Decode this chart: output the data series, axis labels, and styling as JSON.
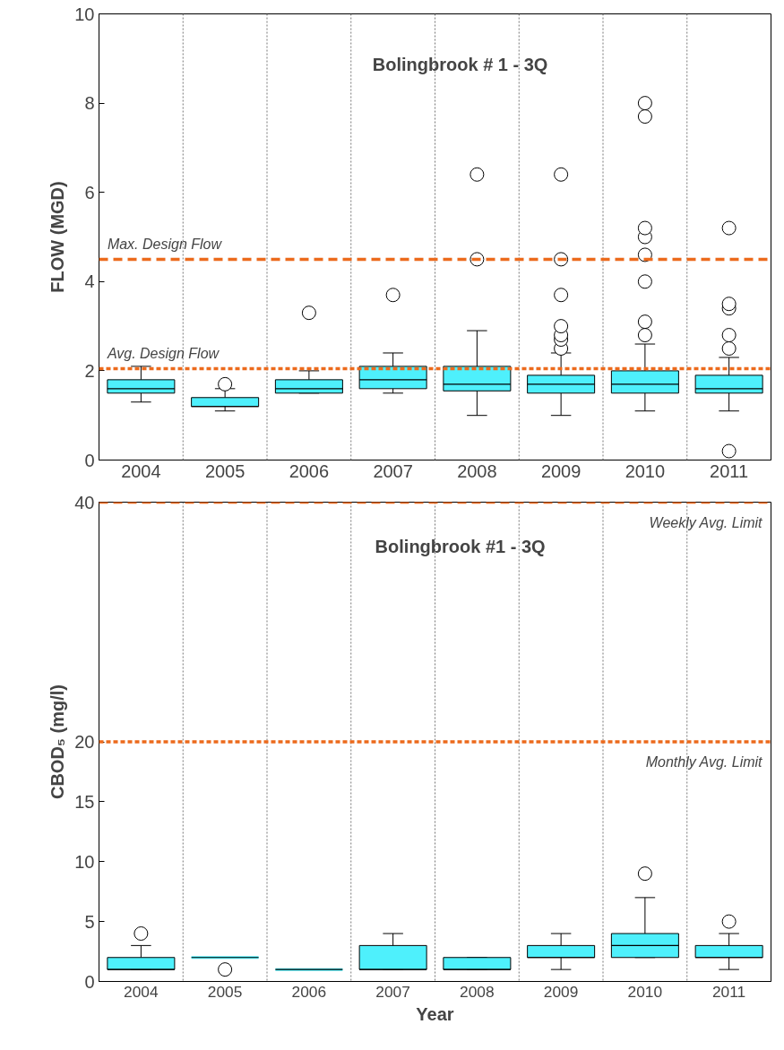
{
  "chart_data": [
    {
      "type": "box",
      "title": "Bolingbrook # 1 - 3Q",
      "ylabel": "FLOW (MGD)",
      "categories": [
        "2004",
        "2005",
        "2006",
        "2007",
        "2008",
        "2009",
        "2010",
        "2011"
      ],
      "color": "#4ef0fc",
      "ylim": [
        0,
        10
      ],
      "yticks": [
        0,
        2,
        4,
        6,
        8,
        10
      ],
      "grid": "x",
      "boxes": [
        {
          "low": 1.3,
          "q1": 1.5,
          "median": 1.6,
          "q3": 1.8,
          "high": 2.1
        },
        {
          "low": 1.1,
          "q1": 1.2,
          "median": 1.2,
          "q3": 1.4,
          "high": 1.6,
          "outliers": [
            1.7
          ]
        },
        {
          "low": 1.5,
          "q1": 1.5,
          "median": 1.6,
          "q3": 1.8,
          "high": 2.0,
          "outliers": [
            3.3
          ]
        },
        {
          "low": 1.5,
          "q1": 1.6,
          "median": 1.8,
          "q3": 2.1,
          "high": 2.4,
          "outliers": [
            3.7
          ]
        },
        {
          "low": 1.0,
          "q1": 1.55,
          "median": 1.7,
          "q3": 2.1,
          "high": 2.9,
          "outliers": [
            4.5,
            6.4
          ]
        },
        {
          "low": 1.0,
          "q1": 1.5,
          "median": 1.7,
          "q3": 1.9,
          "high": 2.4,
          "outliers": [
            2.5,
            2.7,
            2.8,
            3.0,
            3.7,
            4.5,
            6.4
          ]
        },
        {
          "low": 1.1,
          "q1": 1.5,
          "median": 1.7,
          "q3": 2.0,
          "high": 2.6,
          "outliers": [
            2.8,
            3.1,
            4.0,
            4.6,
            5.0,
            5.2,
            7.7,
            8.0
          ]
        },
        {
          "low": 1.1,
          "q1": 1.5,
          "median": 1.6,
          "q3": 1.9,
          "high": 2.3,
          "outliers": [
            0.2,
            2.5,
            2.8,
            3.4,
            3.5,
            5.2
          ]
        }
      ],
      "ref_lines": [
        {
          "axis": "y",
          "value": 4.5,
          "label": "Max. Design Flow",
          "color": "#ec6a1c",
          "line_style": "dashed"
        },
        {
          "axis": "y",
          "value": 2.05,
          "label": "Avg. Design Flow",
          "color": "#ec6a1c",
          "line_style": "dotted"
        }
      ]
    },
    {
      "type": "box",
      "title": "Bolingbrook #1 - 3Q",
      "xlabel": "Year",
      "ylabel": "CBOD₅ (mg/l)",
      "categories": [
        "2004",
        "2005",
        "2006",
        "2007",
        "2008",
        "2009",
        "2010",
        "2011"
      ],
      "color": "#4ef0fc",
      "ylim": [
        0,
        40
      ],
      "yticks": [
        0,
        5,
        10,
        15,
        20,
        40
      ],
      "grid": "x",
      "boxes": [
        {
          "low": 1,
          "q1": 1,
          "median": 1,
          "q3": 2,
          "high": 3,
          "outliers": [
            4
          ]
        },
        {
          "low": 2,
          "q1": 2,
          "median": 2,
          "q3": 2,
          "high": 2,
          "outliers": [
            1
          ]
        },
        {
          "low": 1,
          "q1": 1,
          "median": 1,
          "q3": 1,
          "high": 1
        },
        {
          "low": 1,
          "q1": 1,
          "median": 1,
          "q3": 3,
          "high": 4
        },
        {
          "low": 1,
          "q1": 1,
          "median": 1,
          "q3": 2,
          "high": 2
        },
        {
          "low": 1,
          "q1": 2,
          "median": 2,
          "q3": 3,
          "high": 4
        },
        {
          "low": 2,
          "q1": 2,
          "median": 3,
          "q3": 4,
          "high": 7,
          "outliers": [
            9
          ]
        },
        {
          "low": 1,
          "q1": 2,
          "median": 2,
          "q3": 3,
          "high": 4,
          "outliers": [
            5
          ]
        }
      ],
      "ref_lines": [
        {
          "axis": "y",
          "value": 40,
          "label": "Weekly Avg. Limit",
          "color": "#ec6a1c",
          "line_style": "dashed"
        },
        {
          "axis": "y",
          "value": 20,
          "label": "Monthly Avg. Limit",
          "color": "#ec6a1c",
          "line_style": "dotted"
        }
      ]
    }
  ]
}
